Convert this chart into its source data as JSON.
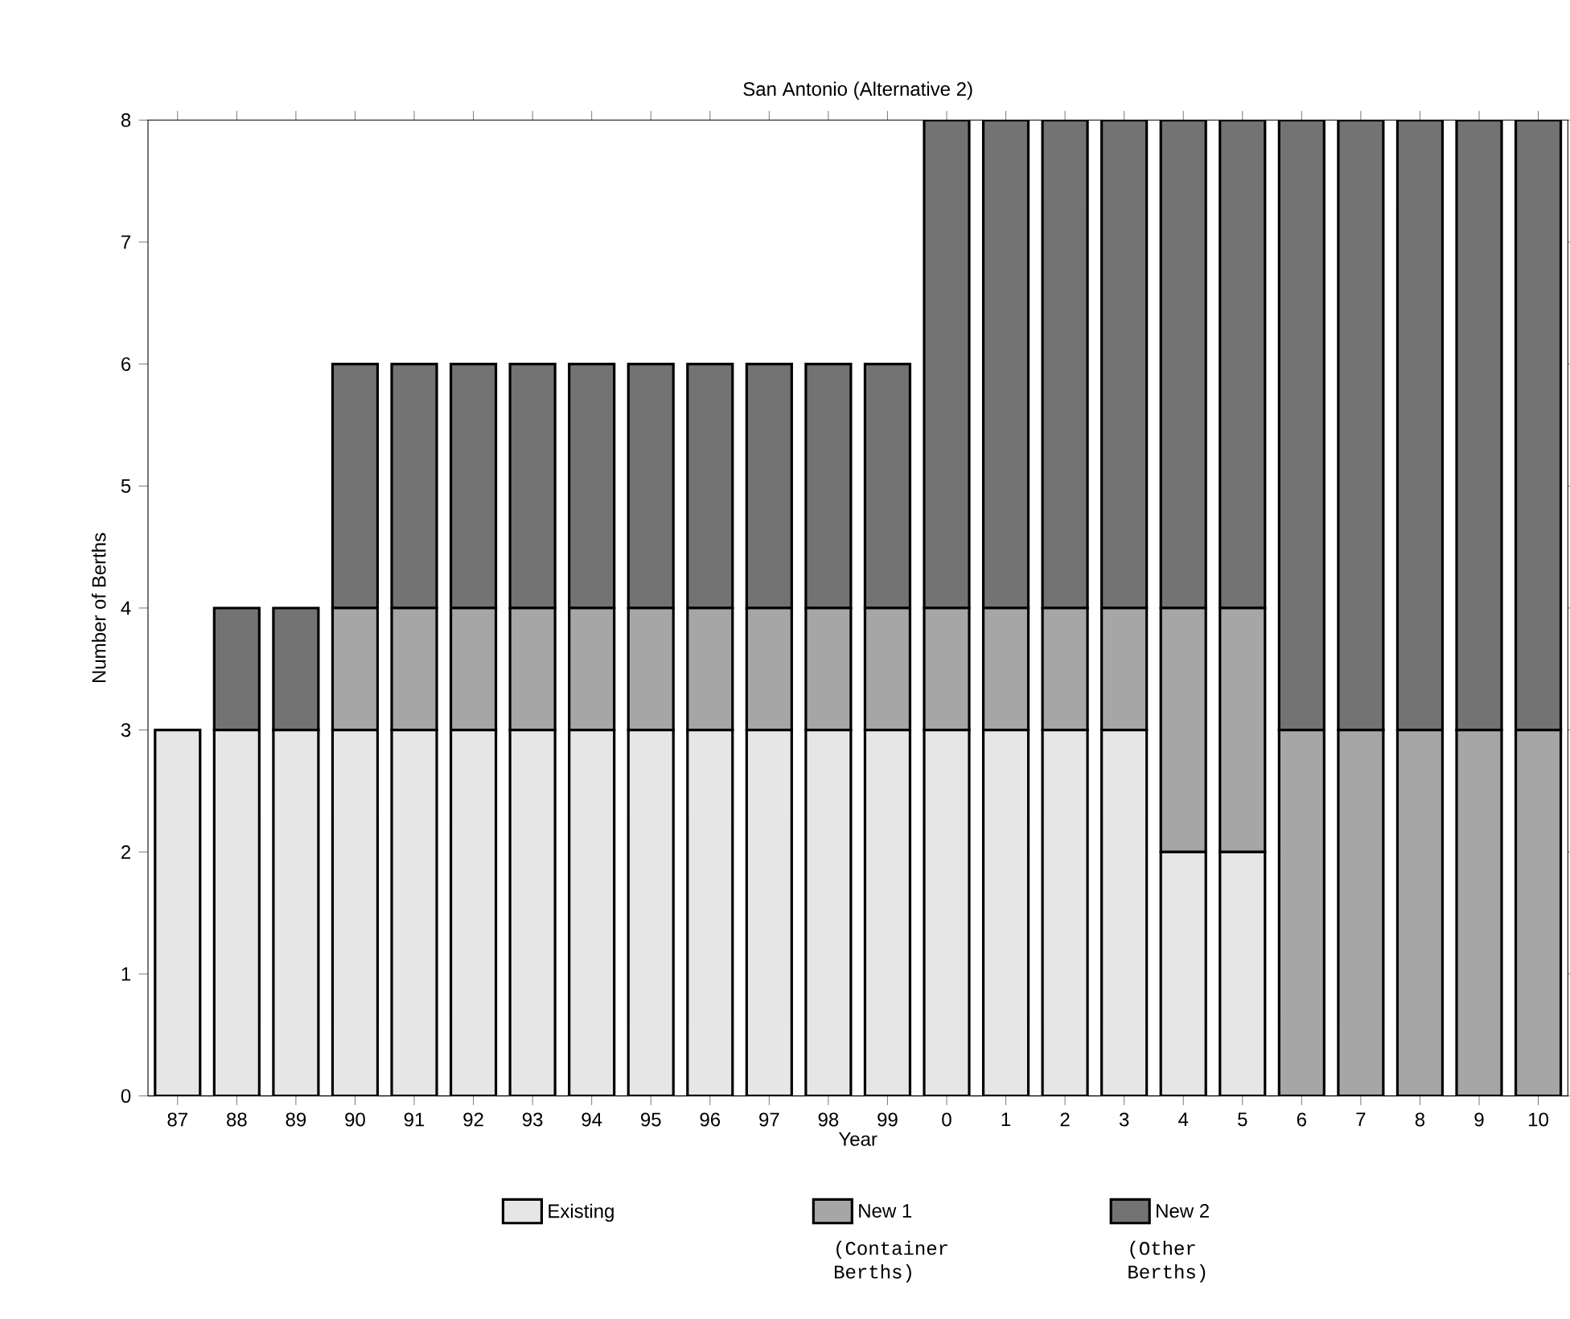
{
  "chart_data": {
    "type": "bar",
    "title": "San Antonio (Alternative 2)",
    "xlabel": "Year",
    "ylabel": "Number of Berths",
    "categories": [
      "87",
      "88",
      "89",
      "90",
      "91",
      "92",
      "93",
      "94",
      "95",
      "96",
      "97",
      "98",
      "99",
      "0",
      "1",
      "2",
      "3",
      "4",
      "5",
      "6",
      "7",
      "8",
      "9",
      "10"
    ],
    "stacked": true,
    "series": [
      {
        "name": "Existing",
        "color": "#e6e6e6",
        "values": [
          3,
          3,
          3,
          3,
          3,
          3,
          3,
          3,
          3,
          3,
          3,
          3,
          3,
          3,
          3,
          3,
          3,
          2,
          2,
          0,
          0,
          0,
          0,
          0
        ]
      },
      {
        "name": "New 1",
        "color": "#a6a6a6",
        "values": [
          0,
          0,
          0,
          1,
          1,
          1,
          1,
          1,
          1,
          1,
          1,
          1,
          1,
          1,
          1,
          1,
          1,
          2,
          2,
          3,
          3,
          3,
          3,
          3
        ]
      },
      {
        "name": "New 2",
        "color": "#737373",
        "values": [
          0,
          1,
          1,
          2,
          2,
          2,
          2,
          2,
          2,
          2,
          2,
          2,
          2,
          4,
          4,
          4,
          4,
          4,
          4,
          5,
          5,
          5,
          5,
          5
        ]
      }
    ],
    "ylim": [
      0,
      8
    ],
    "yticks": [
      0,
      1,
      2,
      3,
      4,
      5,
      6,
      7,
      8
    ],
    "legend": "bottom",
    "annotations": [
      "(Container Berths)",
      "(Other Berths)"
    ]
  }
}
